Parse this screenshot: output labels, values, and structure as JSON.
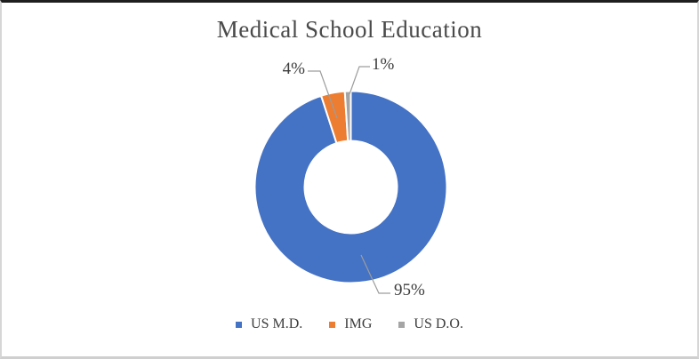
{
  "chart_data": {
    "type": "pie",
    "subtype": "donut",
    "title": "Medical School Education",
    "hole_ratio": 0.48,
    "legend_position": "bottom",
    "background": "#ffffff",
    "text_color": "#3d3d3d",
    "title_color": "#4a4a4a",
    "leader_line_color": "#9d9d9d",
    "segments": [
      {
        "label": "US M.D.",
        "value": 95,
        "display": "95%",
        "color": "#4472C4"
      },
      {
        "label": "IMG",
        "value": 4,
        "display": "4%",
        "color": "#ED7D31"
      },
      {
        "label": "US D.O.",
        "value": 1,
        "display": "1%",
        "color": "#A5A5A5"
      }
    ]
  }
}
